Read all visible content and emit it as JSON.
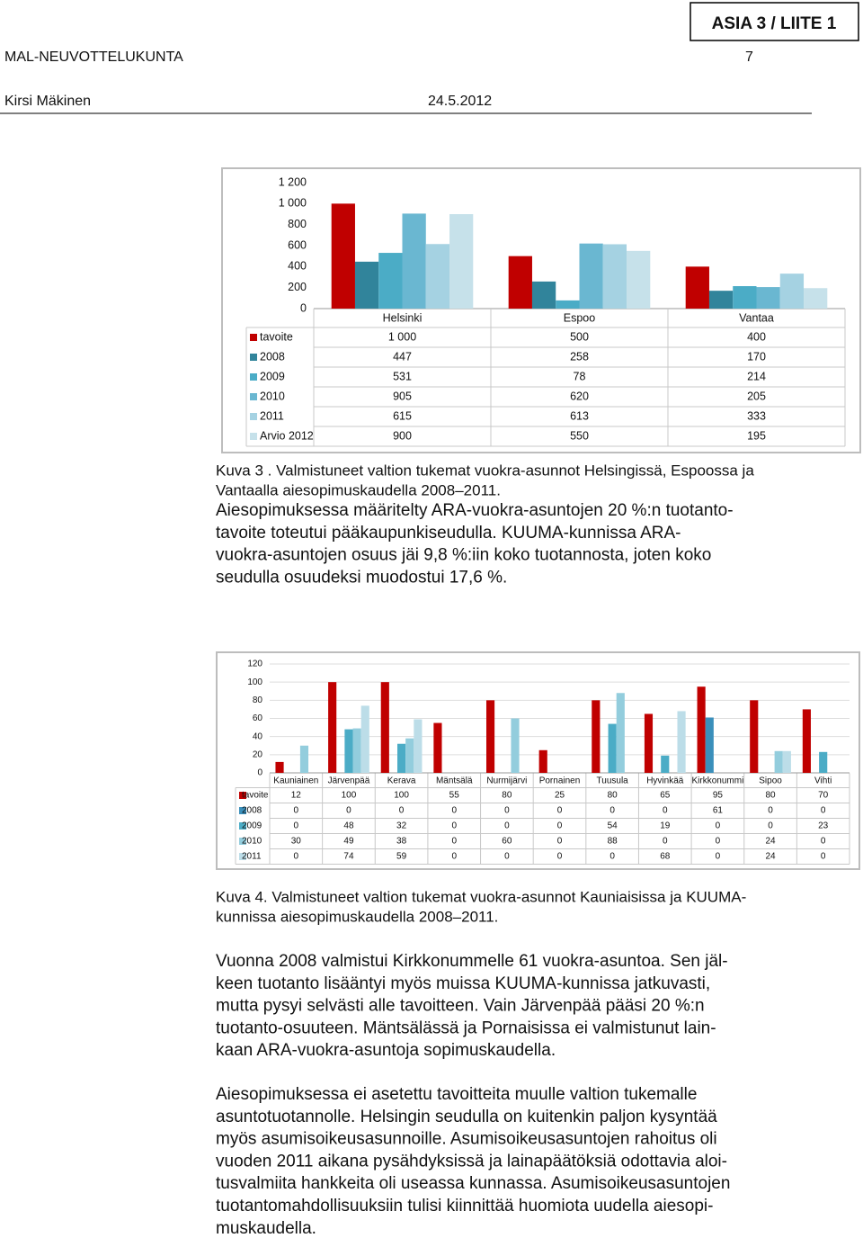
{
  "header": {
    "box": "ASIA 3 / LIITE 1",
    "org": "MAL-NEUVOTTELUKUNTA",
    "page": "7",
    "author": "Kirsi Mäkinen",
    "date": "24.5.2012"
  },
  "chart_data": [
    {
      "type": "bar",
      "grid": false,
      "categories": [
        "Helsinki",
        "Espoo",
        "Vantaa"
      ],
      "ylim": [
        0,
        1200
      ],
      "yticks": [
        0,
        200,
        400,
        600,
        800,
        {
          "value": 1000,
          "label": "1 000"
        },
        {
          "value": 1200,
          "label": "1 200"
        }
      ],
      "series": [
        {
          "name": "tavoite",
          "color": "#c00000",
          "values": [
            1000,
            500,
            400
          ],
          "value_labels": [
            "1 000",
            "500",
            "400"
          ]
        },
        {
          "name": "2008",
          "color": "#31849b",
          "values": [
            447,
            258,
            170
          ]
        },
        {
          "name": "2009",
          "color": "#4bacc6",
          "values": [
            531,
            78,
            214
          ]
        },
        {
          "name": "2010",
          "color": "#6ab7d1",
          "values": [
            905,
            620,
            205
          ]
        },
        {
          "name": "2011",
          "color": "#a5d2e2",
          "values": [
            615,
            613,
            333
          ]
        },
        {
          "name": "Arvio 2012",
          "color": "#c6e1ea",
          "values": [
            900,
            550,
            195
          ]
        }
      ]
    },
    {
      "type": "bar",
      "grid": true,
      "categories": [
        "Kauniainen",
        "Järvenpää",
        "Kerava",
        "Mäntsälä",
        "Nurmijärvi",
        "Pornainen",
        "Tuusula",
        "Hyvinkää",
        "Kirkkonummi",
        "Sipoo",
        "Vihti"
      ],
      "ylim": [
        0,
        120
      ],
      "yticks": [
        0,
        20,
        40,
        60,
        80,
        100,
        120
      ],
      "series": [
        {
          "name": "tavoite",
          "color": "#c00000",
          "values": [
            12,
            100,
            100,
            55,
            80,
            25,
            80,
            65,
            95,
            80,
            70
          ]
        },
        {
          "name": "2008",
          "color": "#3a8fbb",
          "values": [
            0,
            0,
            0,
            0,
            0,
            0,
            0,
            0,
            61,
            0,
            0
          ]
        },
        {
          "name": "2009",
          "color": "#4bacc6",
          "values": [
            0,
            48,
            32,
            0,
            0,
            0,
            54,
            19,
            0,
            0,
            23
          ]
        },
        {
          "name": "2010",
          "color": "#93cddd",
          "values": [
            30,
            49,
            38,
            0,
            60,
            0,
            88,
            0,
            0,
            24,
            0
          ]
        },
        {
          "name": "2011",
          "color": "#bcdde8",
          "values": [
            0,
            74,
            59,
            0,
            0,
            0,
            0,
            68,
            0,
            24,
            0
          ]
        }
      ]
    }
  ],
  "captions": [
    [
      "Kuva 3 . Valmistuneet valtion tukemat vuokra-asunnot Helsingissä, Espoossa ja",
      "Vantaalla aiesopimuskaudella 2008–2011."
    ],
    [
      "Kuva 4. Valmistuneet valtion tukemat vuokra-asunnot Kauniaisissa ja KUUMA-",
      "kunnissa aiesopimuskaudella 2008–2011."
    ]
  ],
  "paragraphs": [
    [
      "Aiesopimuksessa määritelty ARA-vuokra-asuntojen 20 %:n tuotanto-",
      "tavoite toteutui pääkaupunkiseudulla. KUUMA-kunnissa ARA-",
      "vuokra-asuntojen osuus jäi 9,8 %:iin koko tuotannosta, joten koko",
      "seudulla osuudeksi muodostui 17,6 %."
    ],
    [
      "Vuonna 2008 valmistui Kirkkonummelle 61 vuokra-asuntoa. Sen jäl-",
      "keen tuotanto lisääntyi myös muissa KUUMA-kunnissa jatkuvasti,",
      "mutta pysyi selvästi alle tavoitteen. Vain Järvenpää pääsi 20 %:n",
      "tuotanto-osuuteen. Mäntsälässä ja Pornaisissa ei valmistunut lain-",
      "kaan ARA-vuokra-asuntoja sopimuskaudella."
    ],
    [
      "Aiesopimuksessa ei asetettu tavoitteita muulle valtion tukemalle",
      "asuntotuotannolle. Helsingin seudulla on kuitenkin paljon kysyntää",
      "myös asumisoikeusasunnoille. Asumisoikeusasuntojen rahoitus oli",
      "vuoden 2011 aikana pysähdyksissä ja lainapäätöksiä odottavia aloi-",
      "tusvalmiita hankkeita oli useassa kunnassa. Asumisoikeusasuntojen",
      "tuotantomahdollisuuksiin tulisi kiinnittää huomiota uudella aiesopi-",
      "muskaudella."
    ]
  ]
}
